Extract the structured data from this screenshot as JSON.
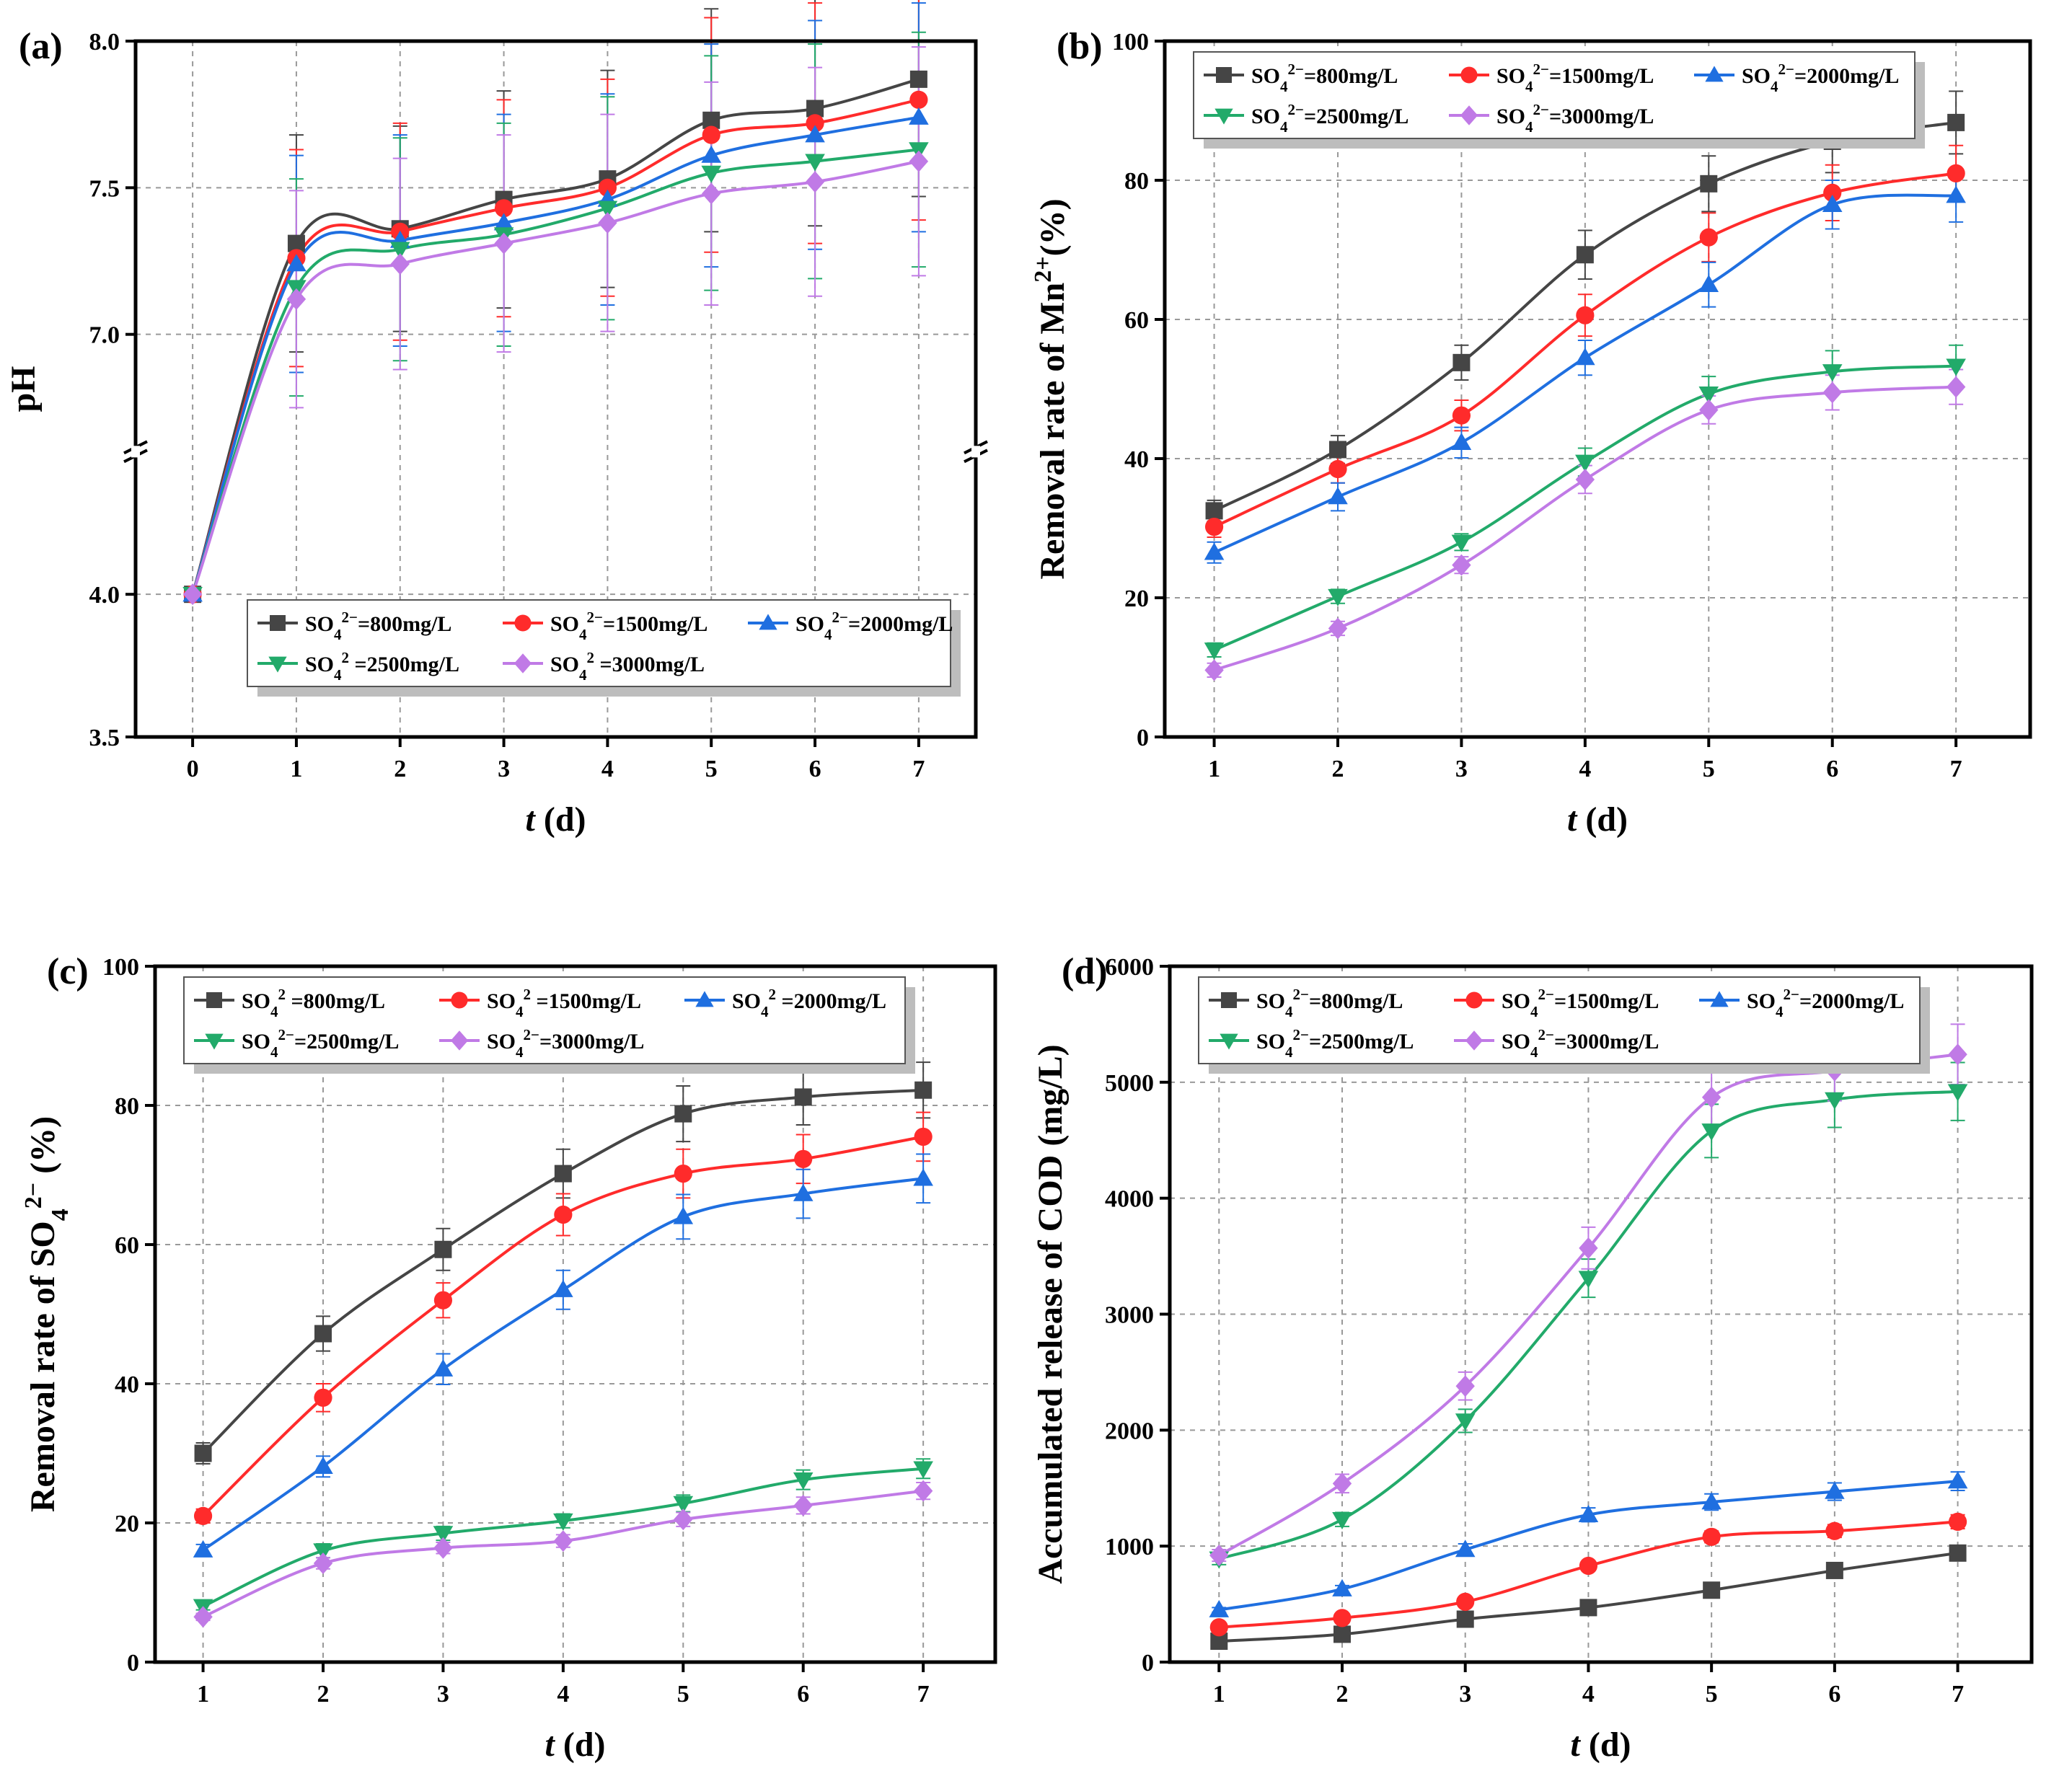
{
  "figure": {
    "xlabel_var": "t",
    "xlabel_unit": " (d)",
    "legend_labels": [
      "SO42−=800mg/L",
      "SO42−=1500mg/L",
      "SO42−=2000mg/L",
      "SO42−=2500mg/L",
      "SO42−=3000mg/L"
    ],
    "series_names": [
      "800mg/L",
      "1500mg/L",
      "2000mg/L",
      "2500mg/L",
      "3000mg/L"
    ],
    "series_colors": [
      "#454545",
      "#ff2b2b",
      "#1f6fe0",
      "#22aa6a",
      "#c07ae6"
    ],
    "series_markers": [
      "square",
      "circle",
      "triangle-up",
      "triangle-down",
      "diamond"
    ]
  },
  "chart_data": [
    {
      "id": "a",
      "panel_label": "(a)",
      "type": "line",
      "ylabel": "pH",
      "xlabel": "t (d)",
      "x": [
        0,
        1,
        2,
        3,
        4,
        5,
        6,
        7
      ],
      "xticks": [
        "0",
        "1",
        "2",
        "3",
        "4",
        "5",
        "6",
        "7"
      ],
      "y_axis_break": {
        "lower": [
          3.5,
          4.5
        ],
        "upper": [
          6.6,
          8.0
        ]
      },
      "yticks": [
        "3.5",
        "4.0",
        "7.0",
        "7.5",
        "8.0"
      ],
      "legend": {
        "position": "bottom-right",
        "labels": [
          "SO42−=800mg/L",
          "SO42−=1500mg/L",
          "SO42−=2000mg/L",
          "SO42 =2500mg/L",
          "SO42 =3000mg/L"
        ]
      },
      "series": [
        {
          "name": "800mg/L",
          "values": [
            4.0,
            7.31,
            7.36,
            7.46,
            7.53,
            7.73,
            7.77,
            7.87
          ],
          "errors": [
            0,
            0.37,
            0.35,
            0.37,
            0.37,
            0.38,
            0.4,
            0.4
          ]
        },
        {
          "name": "1500mg/L",
          "values": [
            4.0,
            7.26,
            7.35,
            7.43,
            7.5,
            7.68,
            7.72,
            7.8
          ],
          "errors": [
            0,
            0.37,
            0.37,
            0.37,
            0.37,
            0.4,
            0.41,
            0.41
          ]
        },
        {
          "name": "2000mg/L",
          "values": [
            4.0,
            7.24,
            7.32,
            7.38,
            7.46,
            7.61,
            7.68,
            7.74
          ],
          "errors": [
            0,
            0.37,
            0.36,
            0.37,
            0.36,
            0.38,
            0.39,
            0.39
          ]
        },
        {
          "name": "2500mg/L",
          "values": [
            4.0,
            7.16,
            7.29,
            7.34,
            7.43,
            7.55,
            7.59,
            7.63
          ],
          "errors": [
            0,
            0.37,
            0.38,
            0.38,
            0.38,
            0.4,
            0.4,
            0.4
          ]
        },
        {
          "name": "3000mg/L",
          "values": [
            4.0,
            7.12,
            7.24,
            7.31,
            7.38,
            7.48,
            7.52,
            7.59
          ],
          "errors": [
            0,
            0.37,
            0.36,
            0.37,
            0.37,
            0.38,
            0.39,
            0.39
          ]
        }
      ]
    },
    {
      "id": "b",
      "panel_label": "(b)",
      "type": "line",
      "ylabel": "Removal rate of Mn2+(%)",
      "xlabel": "t (d)",
      "x": [
        1,
        2,
        3,
        4,
        5,
        6,
        7
      ],
      "xticks": [
        "1",
        "2",
        "3",
        "4",
        "5",
        "6",
        "7"
      ],
      "ylim": [
        0,
        100
      ],
      "yticks": [
        "0",
        "20",
        "40",
        "60",
        "80",
        "100"
      ],
      "legend": {
        "position": "top-left",
        "labels": [
          "SO42−=800mg/L",
          "SO42−=1500mg/L",
          "SO42−=2000mg/L",
          "SO42−=2500mg/L",
          "SO42−=3000mg/L"
        ]
      },
      "series": [
        {
          "name": "800mg/L",
          "values": [
            32.5,
            41.3,
            53.8,
            69.3,
            79.5,
            85.6,
            88.3
          ],
          "errors": [
            1.5,
            2.0,
            2.5,
            3.5,
            4.0,
            4.5,
            4.5
          ]
        },
        {
          "name": "1500mg/L",
          "values": [
            30.2,
            38.5,
            46.2,
            60.6,
            71.8,
            78.2,
            81.0
          ],
          "errors": [
            1.5,
            2.0,
            2.2,
            3.0,
            3.5,
            4.0,
            4.0
          ]
        },
        {
          "name": "2000mg/L",
          "values": [
            26.5,
            34.5,
            42.3,
            54.5,
            65.0,
            76.5,
            77.8
          ],
          "errors": [
            1.5,
            2.0,
            2.2,
            2.5,
            3.2,
            3.5,
            3.8
          ]
        },
        {
          "name": "2500mg/L",
          "values": [
            12.5,
            20.2,
            28.0,
            39.5,
            49.3,
            52.5,
            53.3
          ],
          "errors": [
            1.0,
            1.0,
            1.2,
            2.0,
            2.5,
            3.0,
            3.0
          ]
        },
        {
          "name": "3000mg/L",
          "values": [
            9.6,
            15.6,
            24.7,
            37.0,
            47.0,
            49.5,
            50.3
          ],
          "errors": [
            1.0,
            1.0,
            1.2,
            2.0,
            2.0,
            2.5,
            2.5
          ]
        }
      ]
    },
    {
      "id": "c",
      "panel_label": "(c)",
      "type": "line",
      "ylabel": "Removal rate of SO42− (%)",
      "xlabel": "t (d)",
      "x": [
        1,
        2,
        3,
        4,
        5,
        6,
        7
      ],
      "xticks": [
        "1",
        "2",
        "3",
        "4",
        "5",
        "6",
        "7"
      ],
      "ylim": [
        0,
        100
      ],
      "yticks": [
        "0",
        "20",
        "40",
        "60",
        "80",
        "100"
      ],
      "legend": {
        "position": "top-left",
        "labels": [
          "SO42 =800mg/L",
          "SO42 =1500mg/L",
          "SO42 =2000mg/L",
          "SO42−=2500mg/L",
          "SO42−=3000mg/L"
        ]
      },
      "series": [
        {
          "name": "800mg/L",
          "values": [
            30.0,
            47.2,
            59.3,
            70.2,
            78.8,
            81.2,
            82.2
          ],
          "errors": [
            1.5,
            2.5,
            3.0,
            3.5,
            4.0,
            4.0,
            4.0
          ]
        },
        {
          "name": "1500mg/L",
          "values": [
            21.0,
            38.0,
            52.0,
            64.3,
            70.2,
            72.3,
            75.5
          ],
          "errors": [
            1.0,
            2.0,
            2.5,
            3.0,
            3.5,
            3.5,
            3.5
          ]
        },
        {
          "name": "2000mg/L",
          "values": [
            16.1,
            28.1,
            42.1,
            53.5,
            64.0,
            67.3,
            69.5
          ],
          "errors": [
            0.8,
            1.5,
            2.2,
            2.8,
            3.2,
            3.5,
            3.5
          ]
        },
        {
          "name": "2500mg/L",
          "values": [
            8.0,
            16.0,
            18.5,
            20.3,
            22.8,
            26.2,
            27.8
          ],
          "errors": [
            0.5,
            1.0,
            1.0,
            1.0,
            1.2,
            1.4,
            1.4
          ]
        },
        {
          "name": "3000mg/L",
          "values": [
            6.5,
            14.2,
            16.4,
            17.4,
            20.5,
            22.5,
            24.6
          ],
          "errors": [
            0.5,
            0.8,
            0.8,
            0.9,
            1.0,
            1.2,
            1.2
          ]
        }
      ]
    },
    {
      "id": "d",
      "panel_label": "(d)",
      "type": "line",
      "ylabel": "Accumulated release of COD (mg/L)",
      "xlabel": "t (d)",
      "x": [
        1,
        2,
        3,
        4,
        5,
        6,
        7
      ],
      "xticks": [
        "1",
        "2",
        "3",
        "4",
        "5",
        "6",
        "7"
      ],
      "ylim": [
        0,
        6000
      ],
      "yticks": [
        "0",
        "1000",
        "2000",
        "3000",
        "4000",
        "5000",
        "6000"
      ],
      "legend": {
        "position": "top-left",
        "labels": [
          "SO42−=800mg/L",
          "SO42−=1500mg/L",
          "SO42−=2000mg/L",
          "SO42−=2500mg/L",
          "SO42−=3000mg/L"
        ]
      },
      "series": [
        {
          "name": "800mg/L",
          "values": [
            180,
            240,
            370,
            470,
            620,
            790,
            940
          ],
          "errors": [
            10,
            15,
            20,
            25,
            30,
            40,
            45
          ]
        },
        {
          "name": "1500mg/L",
          "values": [
            300,
            380,
            520,
            830,
            1080,
            1130,
            1210
          ],
          "errors": [
            15,
            20,
            30,
            40,
            50,
            55,
            60
          ]
        },
        {
          "name": "2000mg/L",
          "values": [
            450,
            630,
            970,
            1270,
            1380,
            1470,
            1560
          ],
          "errors": [
            20,
            30,
            50,
            60,
            70,
            75,
            80
          ]
        },
        {
          "name": "2500mg/L",
          "values": [
            890,
            1230,
            2080,
            3310,
            4580,
            4850,
            4920
          ],
          "errors": [
            50,
            60,
            100,
            165,
            230,
            240,
            250
          ]
        },
        {
          "name": "3000mg/L",
          "values": [
            920,
            1540,
            2380,
            3570,
            4870,
            5100,
            5240
          ],
          "errors": [
            50,
            80,
            120,
            180,
            250,
            260,
            260
          ]
        }
      ]
    }
  ]
}
